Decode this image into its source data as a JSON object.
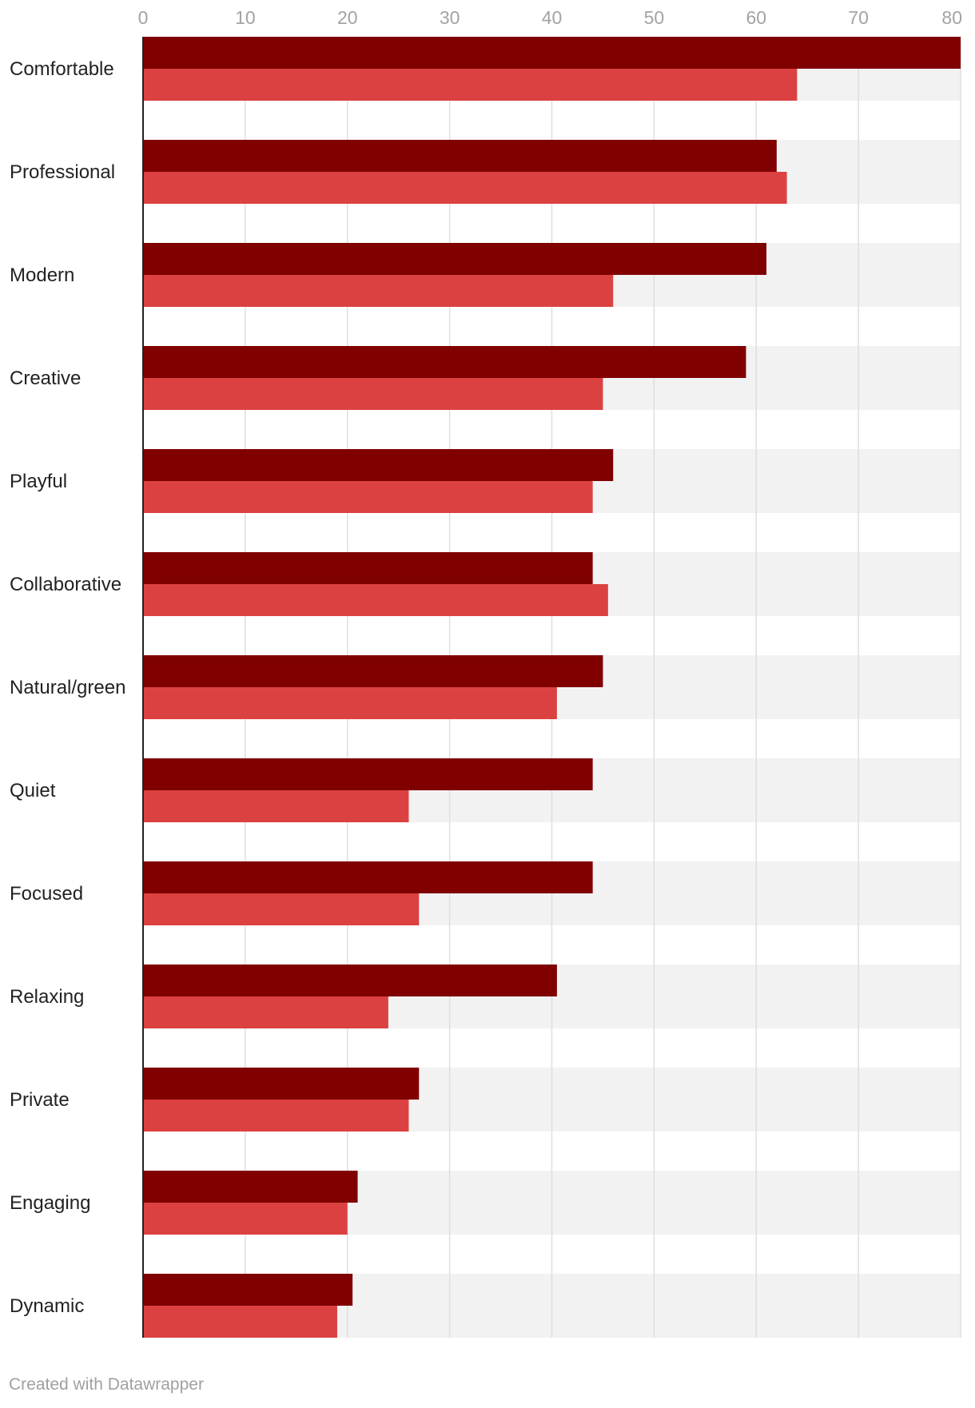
{
  "chart_data": {
    "type": "bar",
    "orientation": "horizontal",
    "title": "",
    "xlabel": "",
    "ylabel": "",
    "xlim": [
      0,
      80
    ],
    "x_ticks": [
      "0",
      "10",
      "20",
      "30",
      "40",
      "50",
      "60",
      "70",
      "80"
    ],
    "x_tick_values": [
      0,
      10,
      20,
      30,
      40,
      50,
      60,
      70,
      80
    ],
    "grid": true,
    "legend": "none",
    "categories": [
      "Comfortable",
      "Professional",
      "Modern",
      "Creative",
      "Playful",
      "Collaborative",
      "Natural/green",
      "Quiet",
      "Focused",
      "Relaxing",
      "Private",
      "Engaging",
      "Dynamic"
    ],
    "series": [
      {
        "color": "#800000",
        "values": [
          80,
          62,
          61,
          59,
          46,
          44,
          45,
          44,
          44,
          40.5,
          27,
          21,
          20.5
        ]
      },
      {
        "color": "#dc4141",
        "values": [
          64,
          63,
          46,
          45,
          44,
          45.5,
          40.5,
          26,
          27,
          24,
          26,
          20,
          19
        ]
      }
    ]
  },
  "footer": {
    "credit": "Created with Datawrapper"
  }
}
